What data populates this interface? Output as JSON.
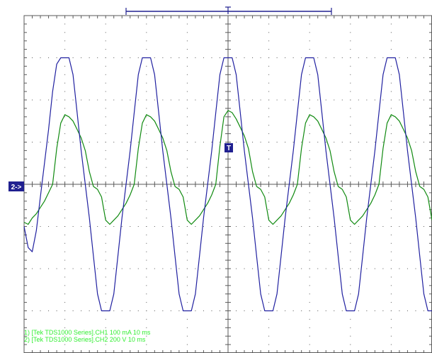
{
  "chart_data": {
    "type": "line",
    "title": "",
    "xlabel": "",
    "ylabel": "",
    "divisions": {
      "x": 10,
      "y": 8
    },
    "time_per_division_ms": 10,
    "trigger_marker": "T",
    "channel_marker": "2->",
    "series": [
      {
        "name": "[Tek TDS1000 Series].CH1",
        "scale": "100 mA",
        "label": "1) [Tek TDS1000 Series].CH1  100 mA    10 ms",
        "color": "#108a10",
        "x_ms": [
          0,
          1,
          2,
          3,
          4,
          5,
          6,
          7,
          8,
          9,
          10,
          11,
          12,
          13,
          14,
          15,
          16,
          17,
          18,
          19,
          20,
          21,
          22,
          23,
          24,
          25,
          26,
          27,
          28,
          29,
          30,
          31,
          32,
          33,
          34,
          35,
          36,
          37,
          38,
          39,
          40,
          41,
          42,
          43,
          44,
          45,
          46,
          47,
          48,
          49,
          50,
          51,
          52,
          53,
          54,
          55,
          56,
          57,
          58,
          59,
          60,
          61,
          62,
          63,
          64,
          65,
          66,
          67,
          68,
          69,
          70,
          71,
          72,
          73,
          74,
          75,
          76,
          77,
          78,
          79,
          80,
          81,
          82,
          83,
          84,
          85,
          86,
          87,
          88,
          89,
          90,
          91,
          92,
          93,
          94,
          95,
          96,
          97,
          98,
          99,
          100
        ],
        "y_div": [
          -0.9,
          -0.95,
          -0.8,
          -0.7,
          -0.55,
          -0.4,
          -0.2,
          0,
          0.85,
          1.45,
          1.65,
          1.6,
          1.5,
          1.3,
          1.1,
          0.8,
          0.3,
          -0.05,
          -0.12,
          -0.3,
          -0.85,
          -0.95,
          -0.85,
          -0.75,
          -0.6,
          -0.45,
          -0.25,
          0,
          0.85,
          1.45,
          1.65,
          1.6,
          1.5,
          1.3,
          1.1,
          0.8,
          0.3,
          -0.05,
          -0.12,
          -0.3,
          -0.85,
          -0.95,
          -0.85,
          -0.75,
          -0.6,
          -0.45,
          -0.25,
          0,
          0.9,
          1.6,
          1.75,
          1.7,
          1.55,
          1.35,
          1.15,
          0.85,
          0.3,
          -0.05,
          -0.12,
          -0.3,
          -0.85,
          -0.95,
          -0.85,
          -0.75,
          -0.6,
          -0.45,
          -0.25,
          0,
          0.85,
          1.45,
          1.65,
          1.6,
          1.5,
          1.3,
          1.1,
          0.8,
          0.3,
          -0.05,
          -0.12,
          -0.3,
          -0.85,
          -0.95,
          -0.85,
          -0.75,
          -0.6,
          -0.45,
          -0.25,
          0,
          0.85,
          1.45,
          1.65,
          1.6,
          1.5,
          1.3,
          1.1,
          0.8,
          0.3,
          -0.05,
          -0.12,
          -0.3,
          -0.85
        ]
      },
      {
        "name": "[Tek TDS1000 Series].CH2",
        "scale": "200 V",
        "label": "2) [Tek TDS1000 Series].CH2  200 V    10 ms",
        "color": "#2020a0",
        "x_ms": [
          0,
          1,
          2,
          3,
          4,
          5,
          6,
          7,
          8,
          9,
          10,
          11,
          12,
          13,
          14,
          15,
          16,
          17,
          18,
          19,
          20,
          21,
          22,
          23,
          24,
          25,
          26,
          27,
          28,
          29,
          30,
          31,
          32,
          33,
          34,
          35,
          36,
          37,
          38,
          39,
          40,
          41,
          42,
          43,
          44,
          45,
          46,
          47,
          48,
          49,
          50,
          51,
          52,
          53,
          54,
          55,
          56,
          57,
          58,
          59,
          60,
          61,
          62,
          63,
          64,
          65,
          66,
          67,
          68,
          69,
          70,
          71,
          72,
          73,
          74,
          75,
          76,
          77,
          78,
          79,
          80,
          81,
          82,
          83,
          84,
          85,
          86,
          87,
          88,
          89,
          90,
          91,
          92,
          93,
          94,
          95,
          96,
          97,
          98,
          99,
          100
        ],
        "y_div": [
          -1.0,
          -1.5,
          -1.6,
          -1.1,
          -0.3,
          0.5,
          1.3,
          2.2,
          2.85,
          3.0,
          3.0,
          3.0,
          2.6,
          1.7,
          0.8,
          0.0,
          -0.8,
          -1.7,
          -2.6,
          -3.0,
          -3.0,
          -3.0,
          -2.6,
          -1.7,
          -0.8,
          0.0,
          0.8,
          1.7,
          2.6,
          3.0,
          3.0,
          3.0,
          2.6,
          1.7,
          0.8,
          0.0,
          -0.8,
          -1.7,
          -2.6,
          -3.0,
          -3.0,
          -3.0,
          -2.6,
          -1.7,
          -0.8,
          0.0,
          0.8,
          1.7,
          2.6,
          3.0,
          3.0,
          3.0,
          2.6,
          1.7,
          0.8,
          0.0,
          -0.8,
          -1.7,
          -2.6,
          -3.0,
          -3.0,
          -3.0,
          -2.6,
          -1.7,
          -0.8,
          0.0,
          0.8,
          1.7,
          2.6,
          3.0,
          3.0,
          3.0,
          2.6,
          1.7,
          0.8,
          0.0,
          -0.8,
          -1.7,
          -2.6,
          -3.0,
          -3.0,
          -3.0,
          -2.6,
          -1.7,
          -0.8,
          0.0,
          0.8,
          1.7,
          2.6,
          3.0,
          3.0,
          3.0,
          2.6,
          1.7,
          0.8,
          0.0,
          -0.8,
          -1.7,
          -2.6,
          -3.0,
          -3.0
        ]
      }
    ]
  },
  "legend": {
    "line1": "1) [Tek TDS1000 Series].CH1  100 mA    10 ms",
    "line2": "2) [Tek TDS1000 Series].CH2  200 V    10 ms"
  },
  "colors": {
    "grid": "#5a5a5a",
    "ch1": "#108a10",
    "ch2": "#2020a0",
    "legend_text": "#33ee33",
    "marker_bg": "#202090",
    "marker_fg": "#ffffff"
  }
}
